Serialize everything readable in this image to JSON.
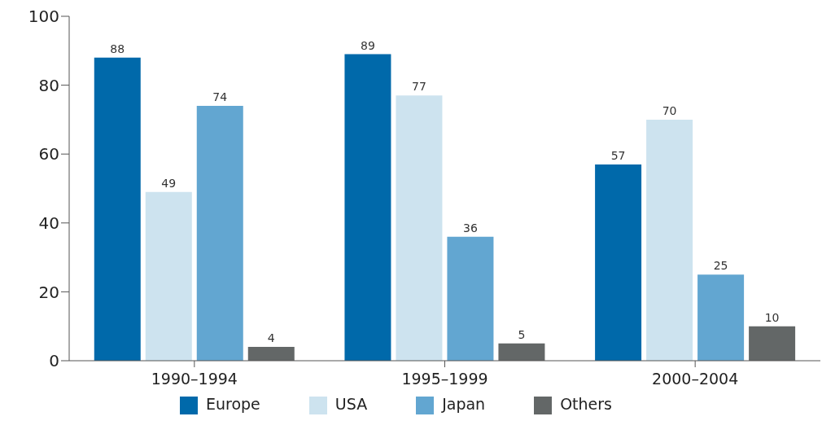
{
  "chart_data": {
    "type": "bar",
    "categories": [
      "1990–1994",
      "1995–1999",
      "2000–2004"
    ],
    "series": [
      {
        "name": "Europe",
        "color": "#0069aa",
        "values": [
          88,
          89,
          57
        ]
      },
      {
        "name": "USA",
        "color": "#cde3ef",
        "values": [
          49,
          77,
          70
        ]
      },
      {
        "name": "Japan",
        "color": "#62a6d1",
        "values": [
          74,
          36,
          25
        ]
      },
      {
        "name": "Others",
        "color": "#636767",
        "values": [
          4,
          5,
          10
        ]
      }
    ],
    "ylim": [
      0,
      100
    ],
    "yticks": [
      0,
      20,
      40,
      60,
      80,
      100
    ],
    "data_labels": true,
    "legend": "bottom"
  }
}
